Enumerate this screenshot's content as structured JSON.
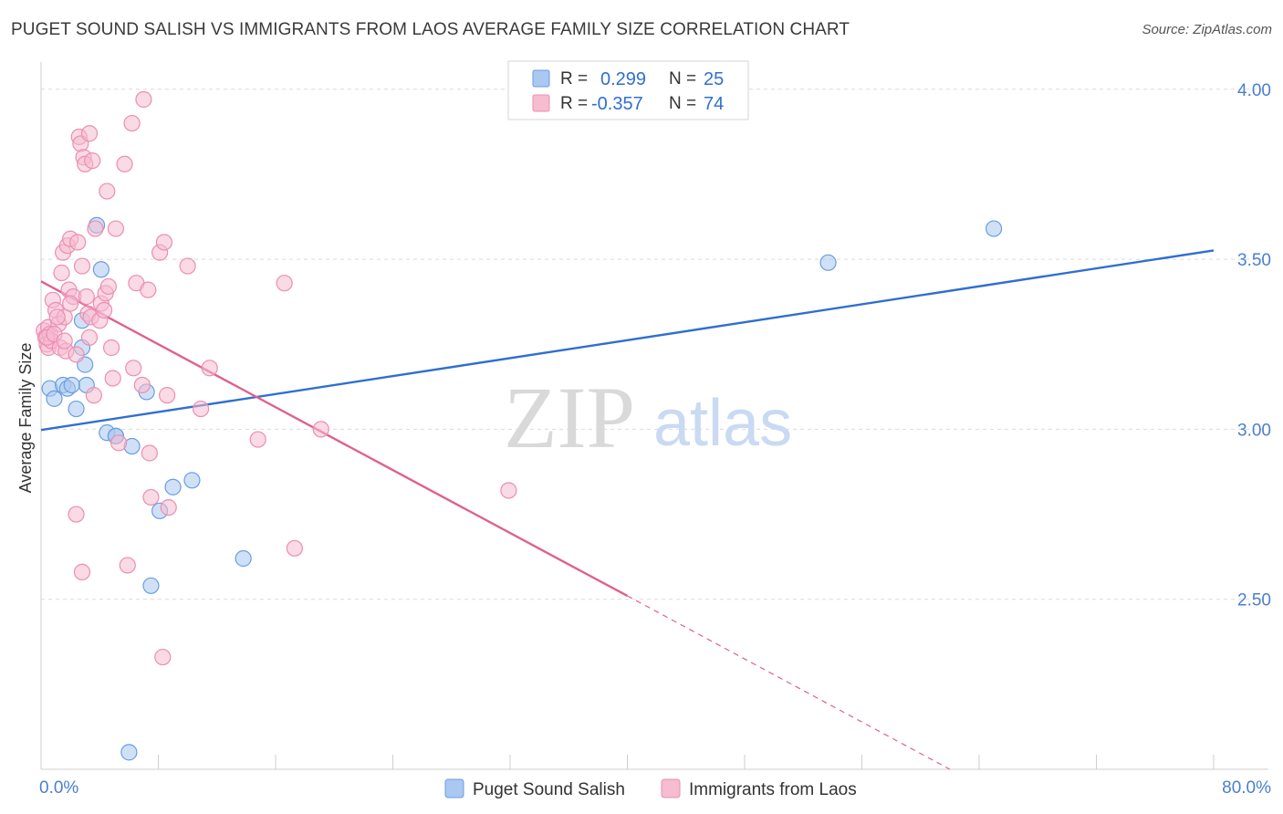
{
  "title": "PUGET SOUND SALISH VS IMMIGRANTS FROM LAOS AVERAGE FAMILY SIZE CORRELATION CHART",
  "source": "Source: ZipAtlas.com",
  "watermark": {
    "zip": "ZIP",
    "atlas": "atlas"
  },
  "legend_box": {
    "r_label": "R =",
    "n_label": "N =",
    "rows": [
      {
        "r": "0.299",
        "n": "25"
      },
      {
        "r": "-0.357",
        "n": "74"
      }
    ]
  },
  "colors": {
    "blue_fill": "#aac8f0",
    "blue_stroke": "#6a9ee0",
    "blue_line": "#2f6fd0",
    "pink_fill": "#f6bcd0",
    "pink_stroke": "#ec8eb0",
    "pink_line": "#e0608e",
    "grid": "#dcdcdc",
    "tick_text": "#4a7fd0"
  },
  "chart_data": {
    "type": "scatter",
    "title": "PUGET SOUND SALISH VS IMMIGRANTS FROM LAOS AVERAGE FAMILY SIZE CORRELATION CHART",
    "xlabel": "",
    "ylabel": "Average Family Size",
    "xlim": [
      0,
      80
    ],
    "ylim": [
      2.0,
      4.08
    ],
    "x_tick_labels": [
      "0.0%",
      "80.0%"
    ],
    "y_ticks": [
      2.5,
      3.0,
      3.5,
      4.0
    ],
    "y_tick_labels": [
      "2.50",
      "3.00",
      "3.50",
      "4.00"
    ],
    "grid": true,
    "legend_position": "bottom-center",
    "series": [
      {
        "name": "Puget Sound Salish",
        "color": "blue",
        "r": 0.299,
        "n": 25,
        "trend": {
          "x0": 0,
          "y0": 2.998,
          "x1": 80,
          "y1": 3.526
        },
        "points": [
          [
            0.6,
            3.12
          ],
          [
            0.9,
            3.09
          ],
          [
            1.5,
            3.13
          ],
          [
            1.8,
            3.12
          ],
          [
            2.4,
            3.06
          ],
          [
            2.8,
            3.32
          ],
          [
            2.8,
            3.24
          ],
          [
            3.0,
            3.19
          ],
          [
            3.1,
            3.13
          ],
          [
            3.8,
            3.6
          ],
          [
            4.1,
            3.47
          ],
          [
            4.5,
            2.99
          ],
          [
            5.1,
            2.98
          ],
          [
            5.1,
            2.98
          ],
          [
            6.2,
            2.95
          ],
          [
            7.2,
            3.11
          ],
          [
            7.5,
            2.54
          ],
          [
            8.1,
            2.76
          ],
          [
            9.0,
            2.83
          ],
          [
            10.3,
            2.85
          ],
          [
            13.8,
            2.62
          ],
          [
            53.7,
            3.49
          ],
          [
            65.0,
            3.59
          ],
          [
            6.0,
            2.05
          ],
          [
            2.1,
            3.13
          ]
        ]
      },
      {
        "name": "Immigrants from Laos",
        "color": "pink",
        "r": -0.357,
        "n": 74,
        "trend": {
          "x0": 0,
          "y0": 3.435,
          "x1": 40,
          "y1": 2.51
        },
        "trend_dashed": {
          "x0": 40,
          "y0": 2.51,
          "x1": 62,
          "y1": 2.0
        },
        "points": [
          [
            0.2,
            3.29
          ],
          [
            0.3,
            3.27
          ],
          [
            0.4,
            3.25
          ],
          [
            0.5,
            3.3
          ],
          [
            0.5,
            3.24
          ],
          [
            0.6,
            3.28
          ],
          [
            0.7,
            3.26
          ],
          [
            0.8,
            3.38
          ],
          [
            1.0,
            3.35
          ],
          [
            1.2,
            3.31
          ],
          [
            1.3,
            3.24
          ],
          [
            1.4,
            3.46
          ],
          [
            1.5,
            3.52
          ],
          [
            1.6,
            3.33
          ],
          [
            1.7,
            3.23
          ],
          [
            1.8,
            3.54
          ],
          [
            1.9,
            3.41
          ],
          [
            2.0,
            3.56
          ],
          [
            2.2,
            3.39
          ],
          [
            2.4,
            3.22
          ],
          [
            2.5,
            3.55
          ],
          [
            2.6,
            3.86
          ],
          [
            2.7,
            3.84
          ],
          [
            2.8,
            3.48
          ],
          [
            2.9,
            3.8
          ],
          [
            3.0,
            3.78
          ],
          [
            3.1,
            3.39
          ],
          [
            3.2,
            3.34
          ],
          [
            3.3,
            3.87
          ],
          [
            3.3,
            3.27
          ],
          [
            3.4,
            3.33
          ],
          [
            3.5,
            3.79
          ],
          [
            3.6,
            3.1
          ],
          [
            3.7,
            3.59
          ],
          [
            4.0,
            3.32
          ],
          [
            4.1,
            3.37
          ],
          [
            4.3,
            3.35
          ],
          [
            4.4,
            3.4
          ],
          [
            4.5,
            3.7
          ],
          [
            4.6,
            3.42
          ],
          [
            4.8,
            3.24
          ],
          [
            4.9,
            3.15
          ],
          [
            5.1,
            3.59
          ],
          [
            5.3,
            2.96
          ],
          [
            5.7,
            3.78
          ],
          [
            5.9,
            2.6
          ],
          [
            6.2,
            3.9
          ],
          [
            6.3,
            3.18
          ],
          [
            6.5,
            3.43
          ],
          [
            6.9,
            3.13
          ],
          [
            7.0,
            3.97
          ],
          [
            7.3,
            3.41
          ],
          [
            7.4,
            2.93
          ],
          [
            7.5,
            2.8
          ],
          [
            8.1,
            3.52
          ],
          [
            8.3,
            2.33
          ],
          [
            8.4,
            3.55
          ],
          [
            8.6,
            3.1
          ],
          [
            8.7,
            2.77
          ],
          [
            10.0,
            3.48
          ],
          [
            10.9,
            3.06
          ],
          [
            11.5,
            3.18
          ],
          [
            14.8,
            2.97
          ],
          [
            16.6,
            3.43
          ],
          [
            17.3,
            2.65
          ],
          [
            19.1,
            3.0
          ],
          [
            31.9,
            2.82
          ],
          [
            2.4,
            2.75
          ],
          [
            2.8,
            2.58
          ],
          [
            0.4,
            3.27
          ],
          [
            0.9,
            3.28
          ],
          [
            1.1,
            3.33
          ],
          [
            2.0,
            3.37
          ],
          [
            1.6,
            3.26
          ]
        ]
      }
    ]
  }
}
